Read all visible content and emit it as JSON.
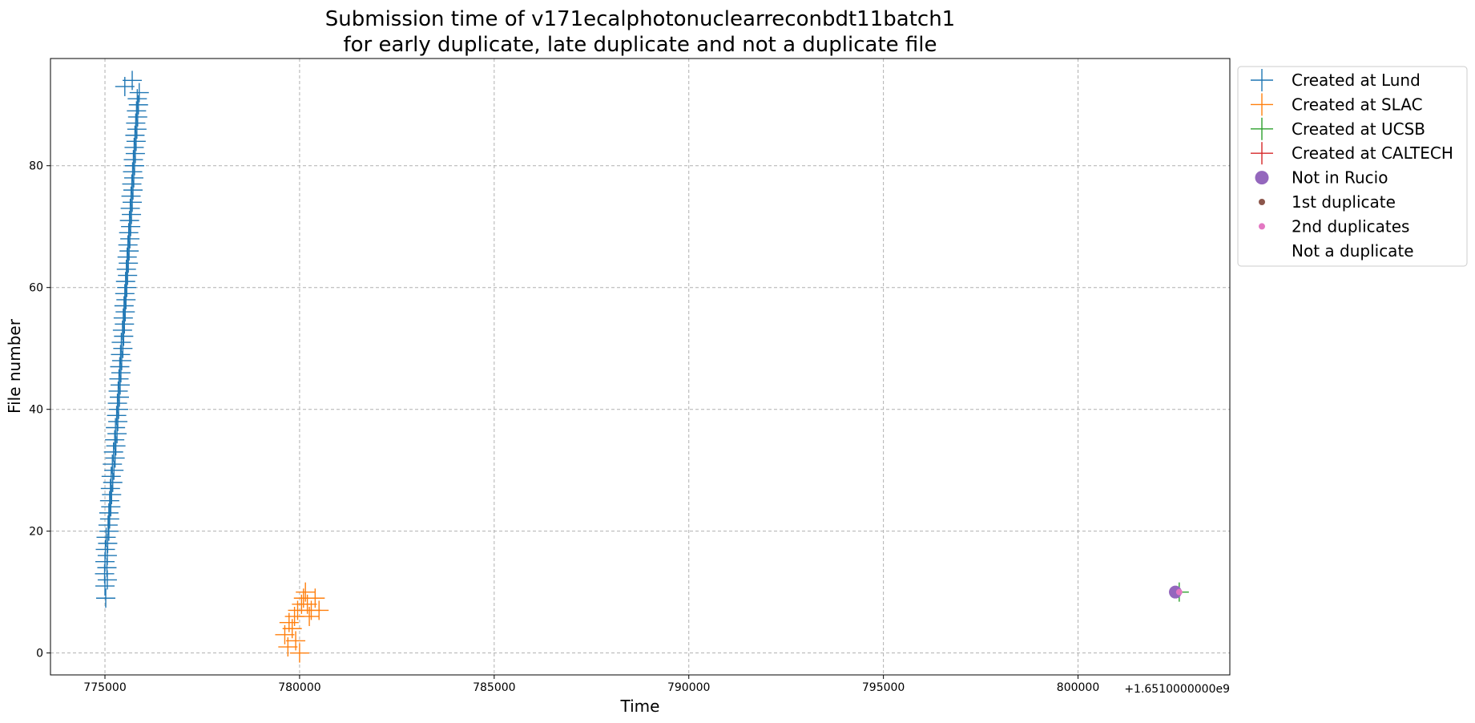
{
  "chart_data": {
    "type": "scatter",
    "title": [
      "Submission time of v171ecalphotonuclearreconbdt11batch1",
      "for early duplicate, late duplicate and not a duplicate file"
    ],
    "xlabel": "Time",
    "ylabel": "File number",
    "x_offset_label": "+1.6510000000e9",
    "xlim": [
      773600,
      803900
    ],
    "ylim": [
      -3.6,
      97.6
    ],
    "xticks": [
      775000,
      780000,
      785000,
      790000,
      795000,
      800000
    ],
    "xtick_labels": [
      "775000",
      "780000",
      "785000",
      "790000",
      "795000",
      "800000"
    ],
    "yticks": [
      0,
      20,
      40,
      60,
      80
    ],
    "ytick_labels": [
      "0",
      "20",
      "40",
      "60",
      "80"
    ],
    "grid": true,
    "legend_position": "outside-top-right",
    "series": [
      {
        "name": "Created at Lund",
        "color": "#1f77b4",
        "marker": "plus",
        "points": [
          [
            775020,
            9
          ],
          [
            775000,
            11
          ],
          [
            775060,
            12
          ],
          [
            774990,
            13
          ],
          [
            775050,
            14
          ],
          [
            775000,
            15
          ],
          [
            775060,
            16
          ],
          [
            775010,
            17
          ],
          [
            775070,
            18
          ],
          [
            775030,
            19
          ],
          [
            775100,
            20
          ],
          [
            775080,
            21
          ],
          [
            775120,
            22
          ],
          [
            775100,
            23
          ],
          [
            775150,
            24
          ],
          [
            775120,
            25
          ],
          [
            775170,
            26
          ],
          [
            775140,
            27
          ],
          [
            775200,
            28
          ],
          [
            775160,
            29
          ],
          [
            775230,
            30
          ],
          [
            775190,
            31
          ],
          [
            775260,
            32
          ],
          [
            775220,
            33
          ],
          [
            775280,
            34
          ],
          [
            775250,
            35
          ],
          [
            775310,
            36
          ],
          [
            775270,
            37
          ],
          [
            775330,
            38
          ],
          [
            775300,
            39
          ],
          [
            775350,
            40
          ],
          [
            775320,
            41
          ],
          [
            775370,
            42
          ],
          [
            775340,
            43
          ],
          [
            775390,
            44
          ],
          [
            775360,
            45
          ],
          [
            775410,
            46
          ],
          [
            775380,
            47
          ],
          [
            775430,
            48
          ],
          [
            775400,
            49
          ],
          [
            775460,
            50
          ],
          [
            775420,
            51
          ],
          [
            775480,
            52
          ],
          [
            775450,
            53
          ],
          [
            775500,
            54
          ],
          [
            775470,
            55
          ],
          [
            775520,
            56
          ],
          [
            775490,
            57
          ],
          [
            775540,
            58
          ],
          [
            775510,
            59
          ],
          [
            775560,
            60
          ],
          [
            775530,
            61
          ],
          [
            775580,
            62
          ],
          [
            775550,
            63
          ],
          [
            775600,
            64
          ],
          [
            775570,
            65
          ],
          [
            775620,
            66
          ],
          [
            775590,
            67
          ],
          [
            775640,
            68
          ],
          [
            775610,
            69
          ],
          [
            775660,
            70
          ],
          [
            775630,
            71
          ],
          [
            775680,
            72
          ],
          [
            775650,
            73
          ],
          [
            775700,
            74
          ],
          [
            775670,
            75
          ],
          [
            775720,
            76
          ],
          [
            775690,
            77
          ],
          [
            775740,
            78
          ],
          [
            775710,
            79
          ],
          [
            775760,
            80
          ],
          [
            775730,
            81
          ],
          [
            775780,
            82
          ],
          [
            775750,
            83
          ],
          [
            775800,
            84
          ],
          [
            775770,
            85
          ],
          [
            775820,
            86
          ],
          [
            775790,
            87
          ],
          [
            775840,
            88
          ],
          [
            775810,
            89
          ],
          [
            775860,
            90
          ],
          [
            775830,
            91
          ],
          [
            775880,
            92
          ],
          [
            775510,
            93
          ],
          [
            775700,
            94
          ]
        ]
      },
      {
        "name": "Created at SLAC",
        "color": "#ff7f0e",
        "marker": "plus",
        "points": [
          [
            779700,
            1
          ],
          [
            779620,
            3
          ],
          [
            779810,
            4
          ],
          [
            779730,
            5
          ],
          [
            779870,
            6
          ],
          [
            779950,
            7
          ],
          [
            780050,
            8
          ],
          [
            780100,
            9
          ],
          [
            780150,
            10
          ],
          [
            779900,
            2
          ],
          [
            780000,
            0
          ],
          [
            780200,
            8
          ],
          [
            780300,
            7
          ],
          [
            780400,
            9
          ],
          [
            780500,
            7
          ],
          [
            780250,
            6
          ]
        ]
      },
      {
        "name": "Created at UCSB",
        "color": "#2ca02c",
        "marker": "plus",
        "points": [
          [
            802600,
            10
          ]
        ]
      },
      {
        "name": "Created at CALTECH",
        "color": "#d62728",
        "marker": "plus",
        "points": []
      },
      {
        "name": "Not in Rucio",
        "color": "#9467bd",
        "marker": "large-dot",
        "points": [
          [
            802500,
            10
          ]
        ]
      },
      {
        "name": "1st duplicate",
        "color": "#8c564b",
        "marker": "dot",
        "points": []
      },
      {
        "name": "2nd duplicates",
        "color": "#e377c2",
        "marker": "dot",
        "points": [
          [
            802600,
            10
          ]
        ]
      },
      {
        "name": "Not a duplicate",
        "color": "#ffffff",
        "marker": "none",
        "points": []
      }
    ]
  }
}
